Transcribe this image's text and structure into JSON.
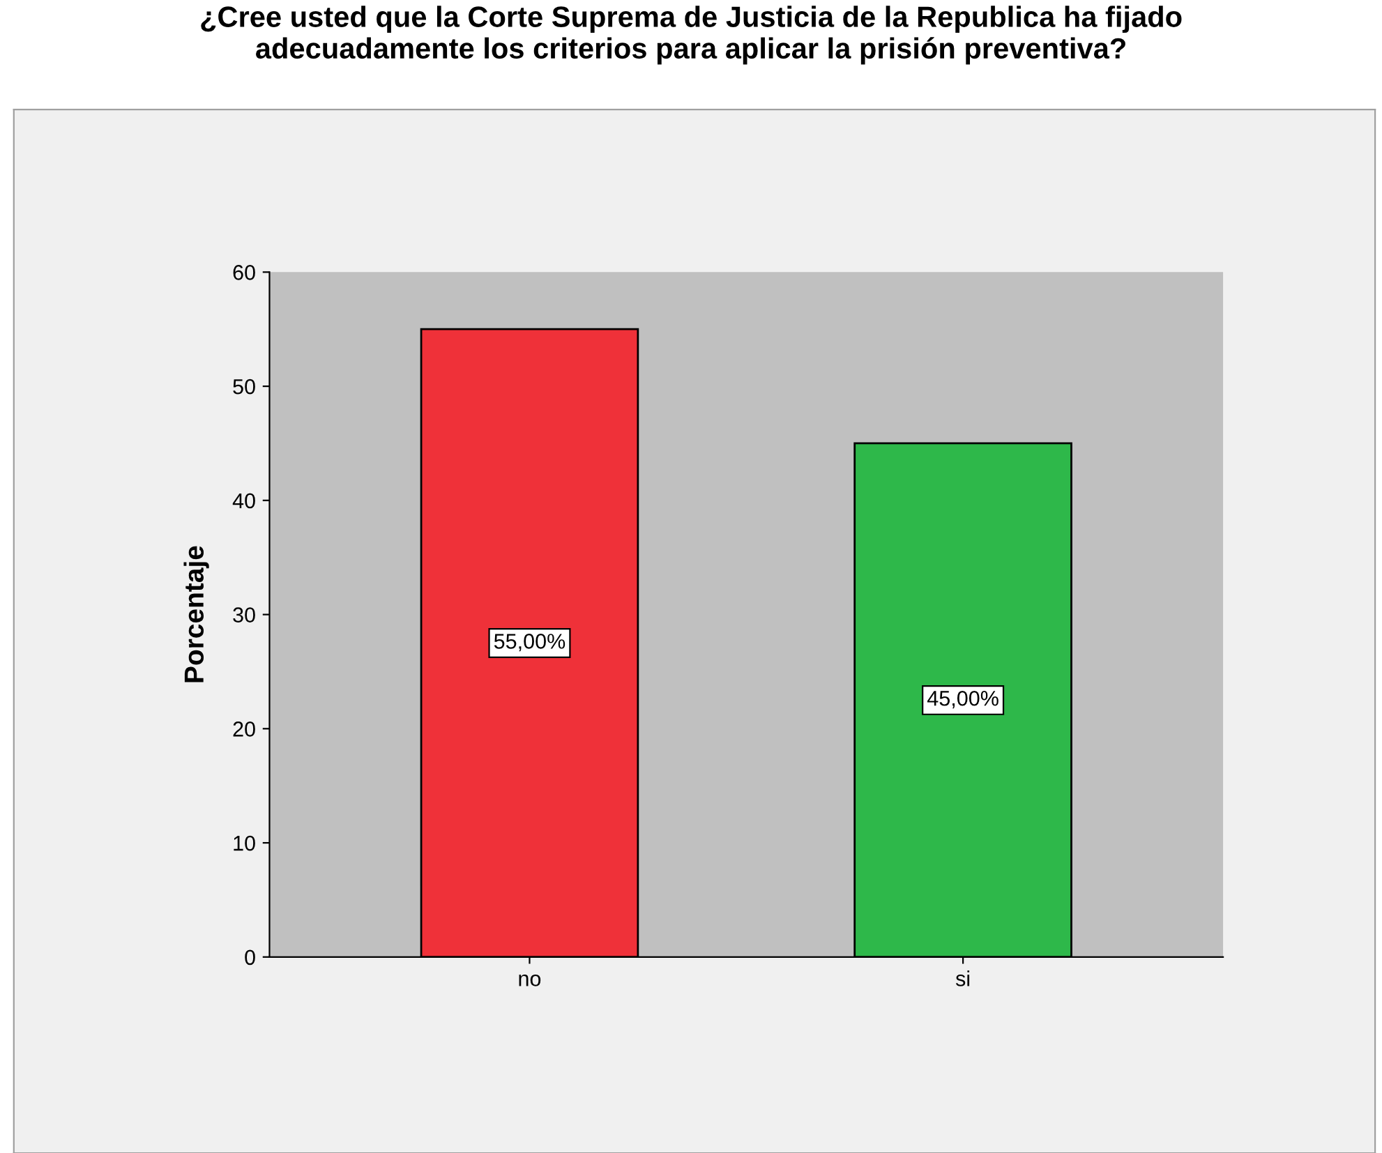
{
  "chart_data": {
    "type": "bar",
    "title": "¿Cree usted que la Corte Suprema de Justicia de la Republica ha fijado\nadecuadamente los criterios para aplicar la prisión preventiva?",
    "ylabel": "Porcentaje",
    "categories": [
      "no",
      "si"
    ],
    "values": [
      55,
      45
    ],
    "colors": [
      "#ef3139",
      "#2eb84a"
    ],
    "value_labels": [
      "55,00%",
      "45,00%"
    ],
    "ylim": [
      0,
      60
    ],
    "yticks": [
      0,
      10,
      20,
      30,
      40,
      50,
      60
    ],
    "grid": false
  }
}
